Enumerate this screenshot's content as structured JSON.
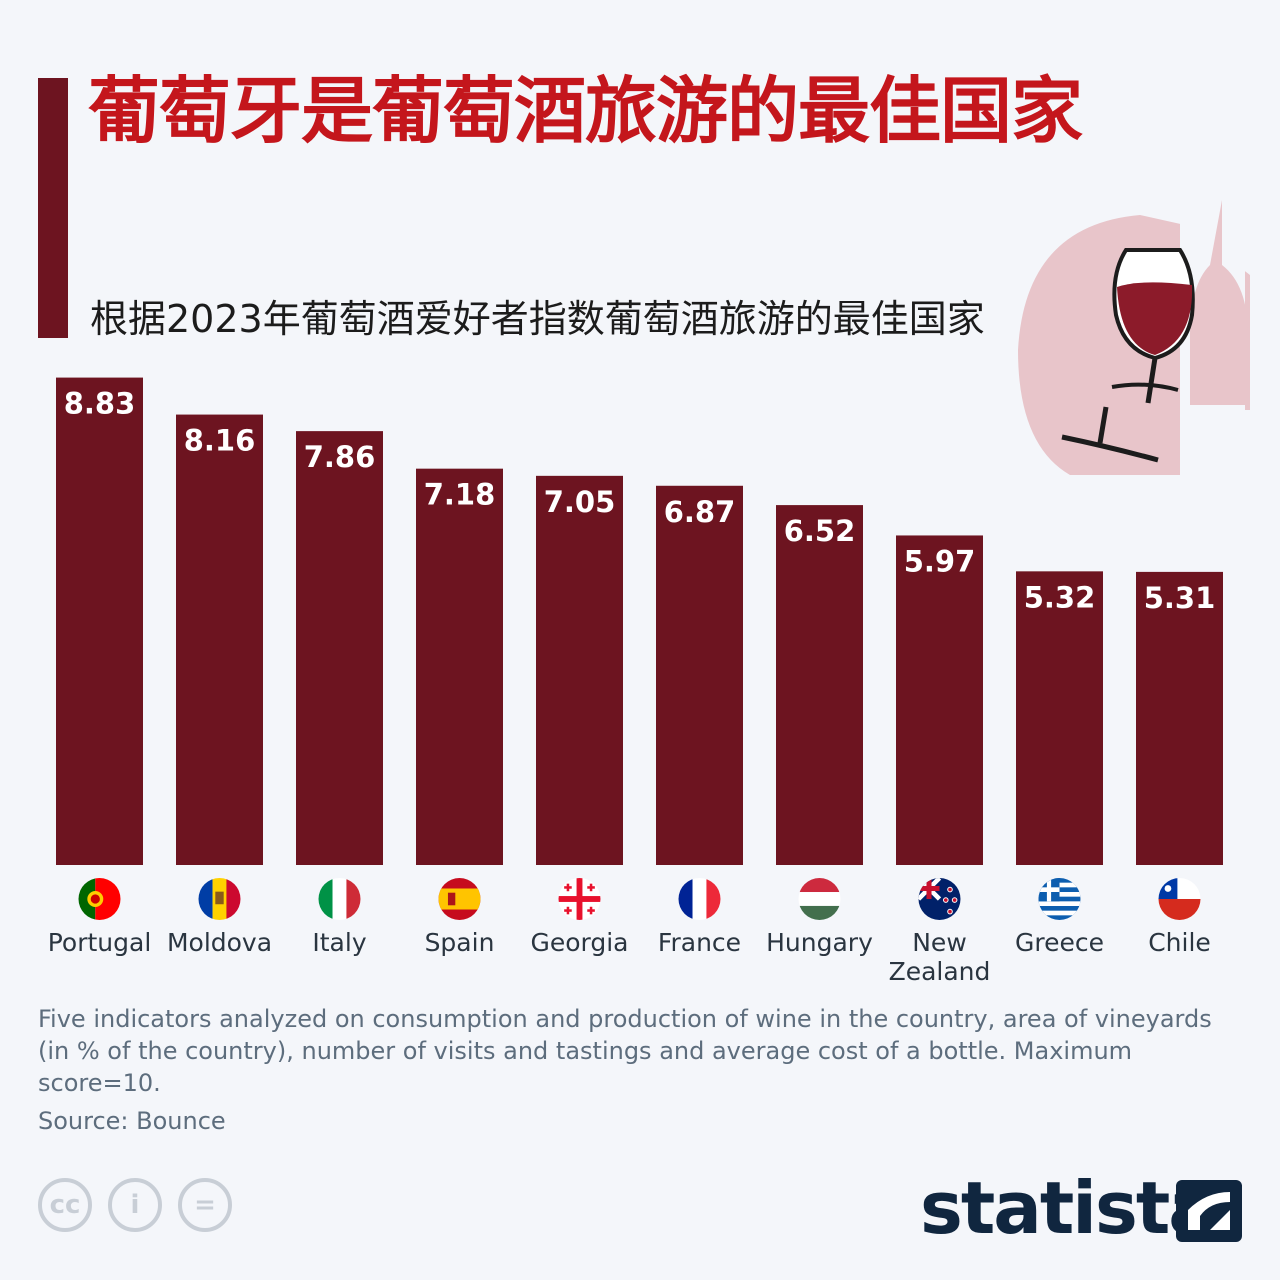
{
  "header": {
    "title": "葡萄牙是葡萄酒旅游的最佳国家",
    "subtitle": "根据2023年葡萄酒爱好者指数葡萄酒旅游的最佳国家"
  },
  "chart_data": {
    "type": "bar",
    "title": "葡萄牙是葡萄酒旅游的最佳国家",
    "subtitle": "根据2023年葡萄酒爱好者指数葡萄酒旅游的最佳国家",
    "categories": [
      "Portugal",
      "Moldova",
      "Italy",
      "Spain",
      "Georgia",
      "France",
      "Hungary",
      "New Zealand",
      "Greece",
      "Chile"
    ],
    "category_lines": [
      [
        "Portugal"
      ],
      [
        "Moldova"
      ],
      [
        "Italy"
      ],
      [
        "Spain"
      ],
      [
        "Georgia"
      ],
      [
        "France"
      ],
      [
        "Hungary"
      ],
      [
        "New",
        "Zealand"
      ],
      [
        "Greece"
      ],
      [
        "Chile"
      ]
    ],
    "values": [
      8.83,
      8.16,
      7.86,
      7.18,
      7.05,
      6.87,
      6.52,
      5.97,
      5.32,
      5.31
    ],
    "value_labels": [
      "8.83",
      "8.16",
      "7.86",
      "7.18",
      "7.05",
      "6.87",
      "6.52",
      "5.97",
      "5.32",
      "5.31"
    ],
    "flags": [
      "portugal-flag-icon",
      "moldova-flag-icon",
      "italy-flag-icon",
      "spain-flag-icon",
      "georgia-flag-icon",
      "france-flag-icon",
      "hungary-flag-icon",
      "new-zealand-flag-icon",
      "greece-flag-icon",
      "chile-flag-icon"
    ],
    "ylim": [
      0,
      10
    ],
    "xlabel": "",
    "ylabel": "",
    "grid": false,
    "bar_color": "#6d1420"
  },
  "footer": {
    "note": "Five indicators analyzed on consumption and production of wine in the country, area of vineyards (in % of the country), number of visits and tastings and average cost of a bottle. Maximum score=10.",
    "source": "Source: Bounce",
    "logo": "statista",
    "cc_icons": [
      "cc-icon",
      "attribution-icon",
      "no-derivatives-icon"
    ],
    "cc_glyphs": [
      "cc",
      "i",
      "="
    ]
  },
  "colors": {
    "title": "#c4161c",
    "bar": "#6d1420",
    "accent": "#6d1420",
    "logo": "#10263f"
  }
}
